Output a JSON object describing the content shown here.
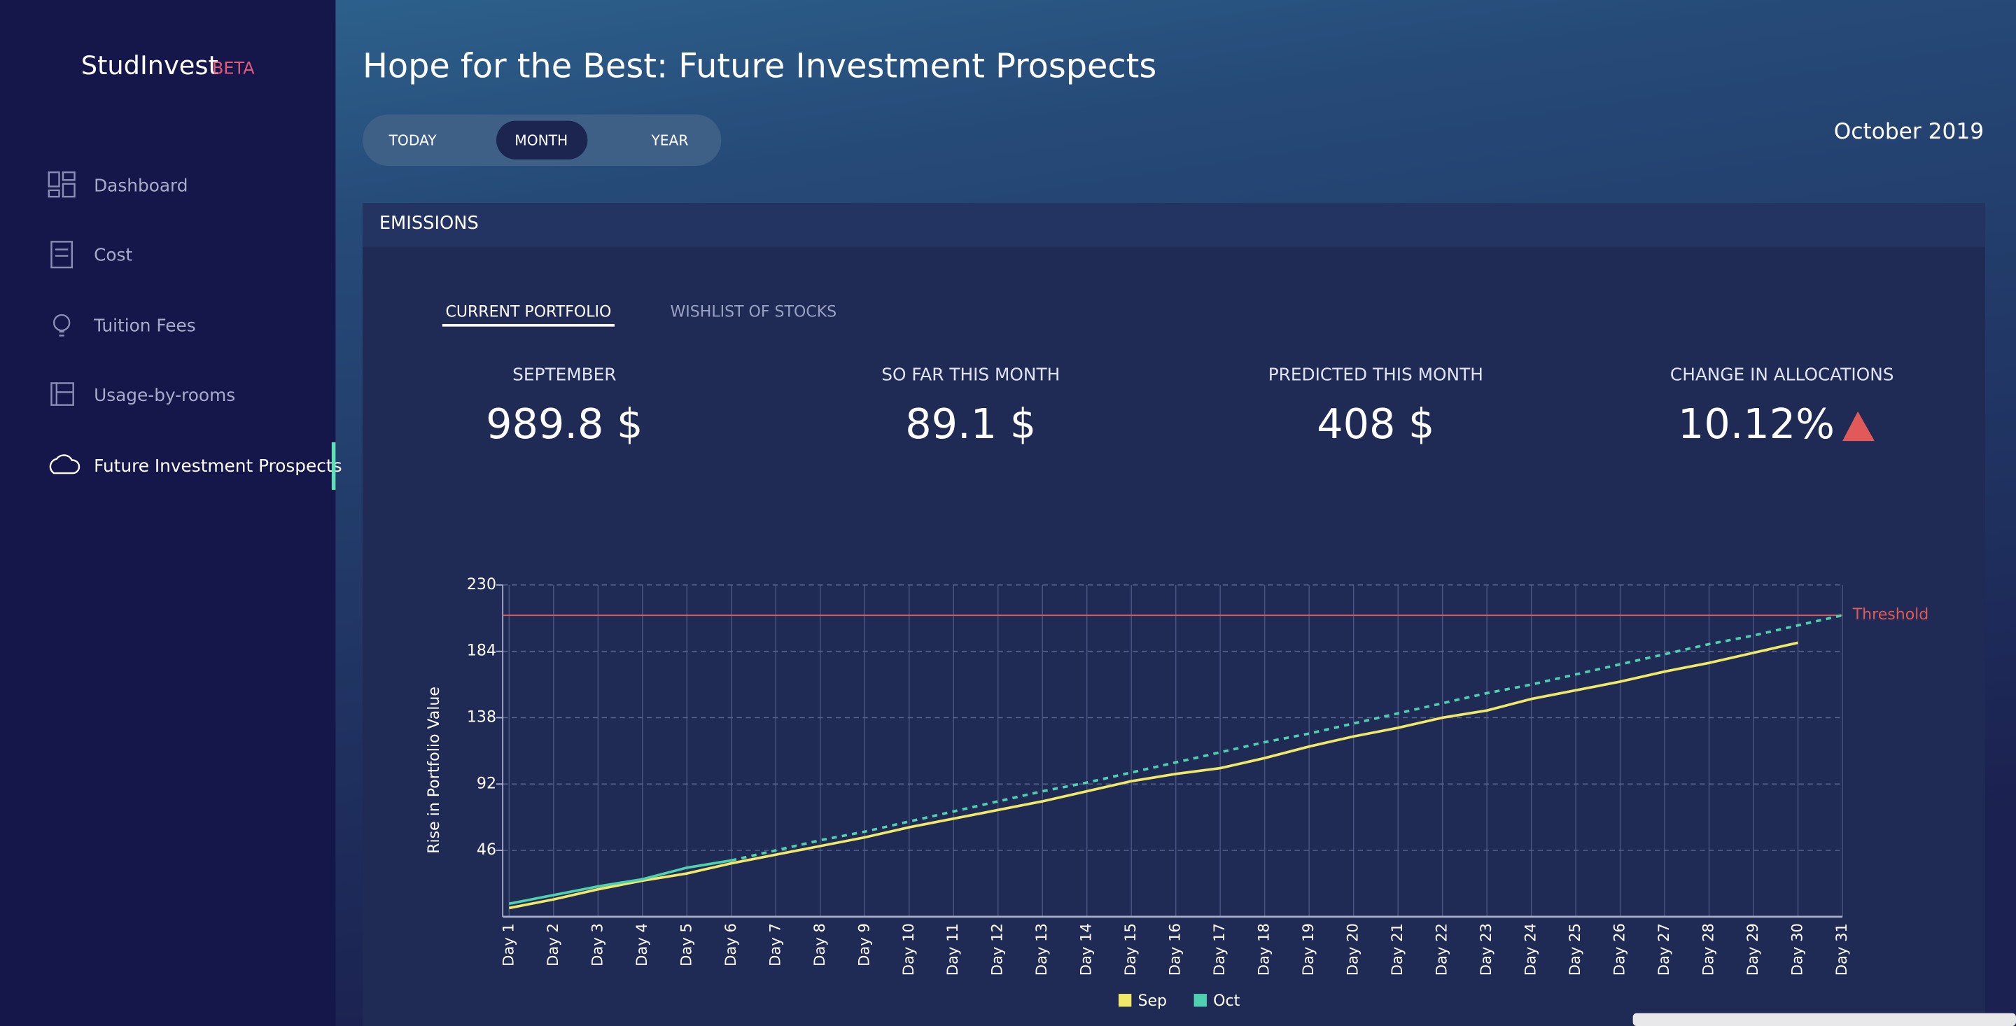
{
  "sidebar": {
    "brand": "StudInvest",
    "badge": "BETA",
    "nav": [
      "Dashboard",
      "Cost",
      "Tuition Fees",
      "Usage-by-rooms",
      "Future Investment Prospects"
    ]
  },
  "header": {
    "title": "Hope for the Best: Future Investment Prospects",
    "periods": [
      "TODAY",
      "MONTH",
      "YEAR"
    ],
    "date": "October 2019"
  },
  "panel": {
    "title": "EMISSIONS",
    "tabs": [
      "CURRENT PORTFOLIO",
      "WISHLIST OF STOCKS"
    ],
    "stats": [
      {
        "label": "SEPTEMBER",
        "value": "989.8 $"
      },
      {
        "label": "SO FAR THIS MONTH",
        "value": "89.1 $"
      },
      {
        "label": "PREDICTED THIS MONTH",
        "value": "408 $"
      },
      {
        "label": "CHANGE IN ALLOCATIONS",
        "value": "10.12%"
      }
    ]
  },
  "chart_data": {
    "type": "line",
    "y_label": "Rise in Portfolio Value",
    "categories": [
      "Day 1",
      "Day 2",
      "Day 3",
      "Day 4",
      "Day 5",
      "Day 6",
      "Day 7",
      "Day 8",
      "Day 9",
      "Day 10",
      "Day 11",
      "Day 12",
      "Day 13",
      "Day 14",
      "Day 15",
      "Day 16",
      "Day 17",
      "Day 18",
      "Day 19",
      "Day 20",
      "Day 21",
      "Day 22",
      "Day 23",
      "Day 24",
      "Day 25",
      "Day 26",
      "Day 27",
      "Day 28",
      "Day 29",
      "Day 30",
      "Day 31"
    ],
    "series": [
      {
        "name": "Sep",
        "color": "#f0e868",
        "values": [
          6,
          12,
          19,
          25,
          30,
          37,
          43,
          49,
          55,
          62,
          68,
          74,
          80,
          87,
          94,
          99,
          103,
          110,
          118,
          125,
          131,
          138,
          143,
          151,
          157,
          163,
          170,
          176,
          183,
          190,
          null
        ]
      },
      {
        "name": "Oct",
        "color": "#4fd1b0",
        "dashed_from": 5,
        "values": [
          9,
          15,
          21,
          26,
          34,
          39,
          46,
          53,
          59,
          66,
          73,
          80,
          87,
          93,
          100,
          107,
          114,
          121,
          127,
          134,
          141,
          148,
          155,
          161,
          168,
          175,
          182,
          189,
          195,
          202,
          209
        ]
      }
    ],
    "ylim": [
      0,
      230
    ],
    "yticks": [
      46,
      92,
      138,
      184,
      230
    ],
    "grid": true,
    "threshold": {
      "value": 209,
      "label": "Threshold",
      "color": "#e05a5a"
    },
    "legend": "bottom"
  }
}
